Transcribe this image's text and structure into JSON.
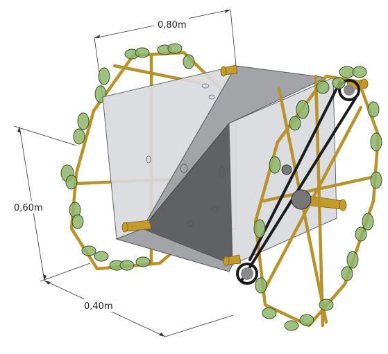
{
  "dimensions": {
    "width_label": "0,80m",
    "height_label": "0,60m",
    "depth_label": "0,40m"
  },
  "colors": {
    "frame": "#b8922c",
    "bottles": "#8fb56b",
    "plates": "#a3a4a8",
    "belt": "#1b1b1b"
  }
}
